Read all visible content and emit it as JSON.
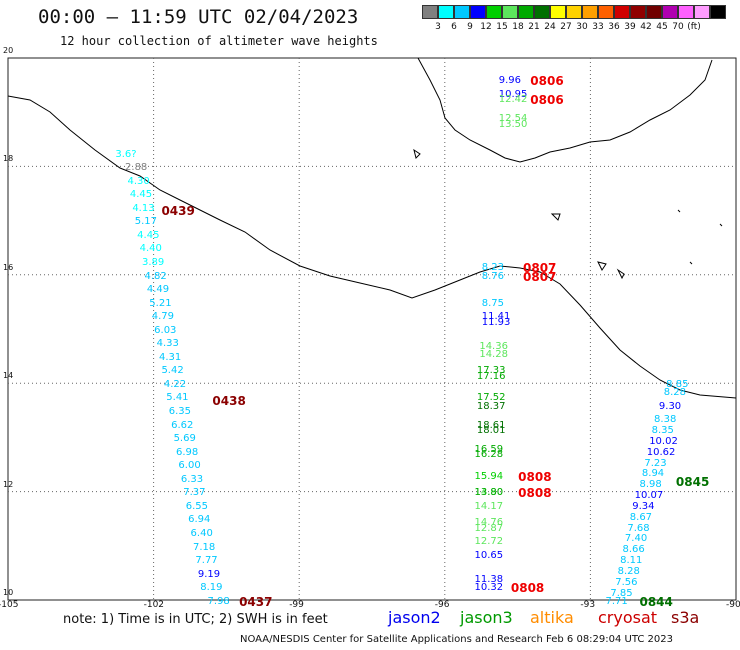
{
  "header": {
    "title": "00:00 – 11:59 UTC 02/04/2023",
    "subtitle": "12 hour collection of altimeter wave heights"
  },
  "scale": {
    "colors": [
      "#808080",
      "#00ffff",
      "#00c8ff",
      "#0000ff",
      "#00d000",
      "#5ce65c",
      "#00aa00",
      "#007000",
      "#ffff00",
      "#ffd200",
      "#ffa000",
      "#ff6000",
      "#d00000",
      "#900000",
      "#700000",
      "#b000b0",
      "#ff60ff",
      "#ff9cff",
      "#000000"
    ],
    "ticks": [
      "3",
      "6",
      "9",
      "12",
      "15",
      "18",
      "21",
      "24",
      "27",
      "30",
      "33",
      "36",
      "39",
      "42",
      "45",
      "70",
      "(ft)"
    ]
  },
  "axes": {
    "y_ticks": [
      "20",
      "18",
      "16",
      "14",
      "12",
      "10"
    ],
    "x_ticks": [
      "-105",
      "-102",
      "-99",
      "-96",
      "-93",
      "-90"
    ]
  },
  "chart_data": {
    "type": "map",
    "lon_range": [
      -105,
      -90
    ],
    "lat_range": [
      10,
      20
    ],
    "observations": [
      {
        "lon": -102.5,
        "lat": 18.2,
        "v": "3.6?",
        "c": "#00ffff"
      },
      {
        "lon": -102.3,
        "lat": 17.95,
        "v": "2.88",
        "c": "#808080"
      },
      {
        "lon": -102.25,
        "lat": 17.7,
        "v": "4.30",
        "c": "#00ffff"
      },
      {
        "lon": -102.2,
        "lat": 17.45,
        "v": "4.45",
        "c": "#00ffff"
      },
      {
        "lon": -102.15,
        "lat": 17.2,
        "v": "4.13",
        "c": "#00ffff"
      },
      {
        "lon": -102.1,
        "lat": 16.95,
        "v": "5.17",
        "c": "#00c8ff"
      },
      {
        "lon": -102.05,
        "lat": 16.7,
        "v": "4.45",
        "c": "#00ffff"
      },
      {
        "lon": -102.0,
        "lat": 16.45,
        "v": "4.40",
        "c": "#00ffff"
      },
      {
        "lon": -101.95,
        "lat": 16.2,
        "v": "3.89",
        "c": "#00ffff"
      },
      {
        "lon": -101.9,
        "lat": 15.95,
        "v": "4.82",
        "c": "#00c8ff"
      },
      {
        "lon": -101.85,
        "lat": 15.7,
        "v": "4.49",
        "c": "#00c8ff"
      },
      {
        "lon": -101.8,
        "lat": 15.45,
        "v": "5.21",
        "c": "#00c8ff"
      },
      {
        "lon": -101.75,
        "lat": 15.2,
        "v": "4.79",
        "c": "#00c8ff"
      },
      {
        "lon": -101.7,
        "lat": 14.95,
        "v": "6.03",
        "c": "#00c8ff"
      },
      {
        "lon": -101.65,
        "lat": 14.7,
        "v": "4.33",
        "c": "#00c8ff"
      },
      {
        "lon": -101.6,
        "lat": 14.45,
        "v": "4.31",
        "c": "#00c8ff"
      },
      {
        "lon": -101.55,
        "lat": 14.2,
        "v": "5.42",
        "c": "#00c8ff"
      },
      {
        "lon": -101.5,
        "lat": 13.95,
        "v": "4.22",
        "c": "#00c8ff"
      },
      {
        "lon": -101.45,
        "lat": 13.7,
        "v": "5.41",
        "c": "#00c8ff"
      },
      {
        "lon": -101.4,
        "lat": 13.45,
        "v": "6.35",
        "c": "#00c8ff"
      },
      {
        "lon": -101.35,
        "lat": 13.2,
        "v": "6.62",
        "c": "#00c8ff"
      },
      {
        "lon": -101.3,
        "lat": 12.95,
        "v": "5.69",
        "c": "#00c8ff"
      },
      {
        "lon": -101.25,
        "lat": 12.7,
        "v": "6.98",
        "c": "#00c8ff"
      },
      {
        "lon": -101.2,
        "lat": 12.45,
        "v": "6.00",
        "c": "#00c8ff"
      },
      {
        "lon": -101.15,
        "lat": 12.2,
        "v": "6.33",
        "c": "#00c8ff"
      },
      {
        "lon": -101.1,
        "lat": 11.95,
        "v": "7.37",
        "c": "#00c8ff"
      },
      {
        "lon": -101.05,
        "lat": 11.7,
        "v": "6.55",
        "c": "#00c8ff"
      },
      {
        "lon": -101.0,
        "lat": 11.45,
        "v": "6.94",
        "c": "#00c8ff"
      },
      {
        "lon": -100.95,
        "lat": 11.2,
        "v": "6.40",
        "c": "#00c8ff"
      },
      {
        "lon": -100.9,
        "lat": 10.95,
        "v": "7.18",
        "c": "#00c8ff"
      },
      {
        "lon": -100.85,
        "lat": 10.7,
        "v": "7.77",
        "c": "#00c8ff"
      },
      {
        "lon": -100.8,
        "lat": 10.45,
        "v": "9.19",
        "c": "#0000ff"
      },
      {
        "lon": -100.75,
        "lat": 10.2,
        "v": "8.19",
        "c": "#00c8ff"
      },
      {
        "lon": -100.6,
        "lat": 9.95,
        "v": "7.98",
        "c": "#00c8ff"
      },
      {
        "lon": -94.6,
        "lat": 19.55,
        "v": "9.96",
        "c": "#0000ff"
      },
      {
        "lon": -94.6,
        "lat": 19.3,
        "v": "10.95",
        "c": "#0000ff"
      },
      {
        "lon": -94.6,
        "lat": 19.2,
        "v": "12.42",
        "c": "#5ce65c"
      },
      {
        "lon": -94.6,
        "lat": 18.85,
        "v": "12.54",
        "c": "#5ce65c"
      },
      {
        "lon": -94.6,
        "lat": 18.75,
        "v": "13.50",
        "c": "#5ce65c"
      },
      {
        "lon": -94.95,
        "lat": 16.1,
        "v": "8.23",
        "c": "#00c8ff"
      },
      {
        "lon": -94.95,
        "lat": 15.95,
        "v": "8.76",
        "c": "#00c8ff"
      },
      {
        "lon": -94.95,
        "lat": 15.45,
        "v": "8.75",
        "c": "#00c8ff"
      },
      {
        "lon": -94.95,
        "lat": 15.2,
        "v": "11.41",
        "c": "#0000ff"
      },
      {
        "lon": -94.95,
        "lat": 15.1,
        "v": "11.93",
        "c": "#0000ff"
      },
      {
        "lon": -95.0,
        "lat": 14.65,
        "v": "14.36",
        "c": "#5ce65c"
      },
      {
        "lon": -95.0,
        "lat": 14.5,
        "v": "14.28",
        "c": "#5ce65c"
      },
      {
        "lon": -95.05,
        "lat": 14.2,
        "v": "17.33",
        "c": "#00aa00"
      },
      {
        "lon": -95.05,
        "lat": 14.1,
        "v": "17.16",
        "c": "#00aa00"
      },
      {
        "lon": -95.05,
        "lat": 13.7,
        "v": "17.52",
        "c": "#00aa00"
      },
      {
        "lon": -95.05,
        "lat": 13.55,
        "v": "18.37",
        "c": "#007000"
      },
      {
        "lon": -95.05,
        "lat": 13.2,
        "v": "18.61",
        "c": "#007000"
      },
      {
        "lon": -95.05,
        "lat": 13.1,
        "v": "18.01",
        "c": "#007000"
      },
      {
        "lon": -95.1,
        "lat": 12.75,
        "v": "16.59",
        "c": "#00aa00"
      },
      {
        "lon": -95.1,
        "lat": 12.65,
        "v": "16.28",
        "c": "#00aa00"
      },
      {
        "lon": -95.1,
        "lat": 12.25,
        "v": "15.94",
        "c": "#00d000"
      },
      {
        "lon": -95.1,
        "lat": 11.95,
        "v": "14.90",
        "c": "#5ce65c"
      },
      {
        "lon": -95.1,
        "lat": 11.95,
        "v": "13.80",
        "c": "#00aa00"
      },
      {
        "lon": -95.1,
        "lat": 11.7,
        "v": "14.17",
        "c": "#5ce65c"
      },
      {
        "lon": -95.1,
        "lat": 11.4,
        "v": "14.76",
        "c": "#5ce65c"
      },
      {
        "lon": -95.1,
        "lat": 11.3,
        "v": "12.87",
        "c": "#5ce65c"
      },
      {
        "lon": -95.1,
        "lat": 11.05,
        "v": "12.72",
        "c": "#5ce65c"
      },
      {
        "lon": -95.1,
        "lat": 10.8,
        "v": "10.65",
        "c": "#0000ff"
      },
      {
        "lon": -95.1,
        "lat": 10.35,
        "v": "11.38",
        "c": "#0000ff"
      },
      {
        "lon": -95.1,
        "lat": 10.2,
        "v": "10.32",
        "c": "#0000ff"
      },
      {
        "lon": -91.15,
        "lat": 13.95,
        "v": "8.85",
        "c": "#00c8ff"
      },
      {
        "lon": -91.2,
        "lat": 13.8,
        "v": "8.28",
        "c": "#00c8ff"
      },
      {
        "lon": -91.3,
        "lat": 13.55,
        "v": "9.30",
        "c": "#0000ff"
      },
      {
        "lon": -91.4,
        "lat": 13.3,
        "v": "8.38",
        "c": "#00c8ff"
      },
      {
        "lon": -91.45,
        "lat": 13.1,
        "v": "8.35",
        "c": "#00c8ff"
      },
      {
        "lon": -91.5,
        "lat": 12.9,
        "v": "10.02",
        "c": "#0000ff"
      },
      {
        "lon": -91.55,
        "lat": 12.7,
        "v": "10.62",
        "c": "#0000ff"
      },
      {
        "lon": -91.6,
        "lat": 12.5,
        "v": "7.23",
        "c": "#00c8ff"
      },
      {
        "lon": -91.65,
        "lat": 12.3,
        "v": "8.94",
        "c": "#00c8ff"
      },
      {
        "lon": -91.7,
        "lat": 12.1,
        "v": "8.98",
        "c": "#00c8ff"
      },
      {
        "lon": -91.8,
        "lat": 11.9,
        "v": "10.07",
        "c": "#0000ff"
      },
      {
        "lon": -91.85,
        "lat": 11.7,
        "v": "9.34",
        "c": "#0000ff"
      },
      {
        "lon": -91.9,
        "lat": 11.5,
        "v": "8.67",
        "c": "#00c8ff"
      },
      {
        "lon": -91.95,
        "lat": 11.3,
        "v": "7.68",
        "c": "#00c8ff"
      },
      {
        "lon": -92.0,
        "lat": 11.1,
        "v": "7.40",
        "c": "#00c8ff"
      },
      {
        "lon": -92.05,
        "lat": 10.9,
        "v": "8.66",
        "c": "#00c8ff"
      },
      {
        "lon": -92.1,
        "lat": 10.7,
        "v": "8.11",
        "c": "#00c8ff"
      },
      {
        "lon": -92.15,
        "lat": 10.5,
        "v": "8.28",
        "c": "#00c8ff"
      },
      {
        "lon": -92.2,
        "lat": 10.3,
        "v": "7.56",
        "c": "#00c8ff"
      },
      {
        "lon": -92.3,
        "lat": 10.1,
        "v": "7.85",
        "c": "#00c8ff"
      },
      {
        "lon": -92.4,
        "lat": 9.95,
        "v": "7.71",
        "c": "#00c8ff"
      }
    ],
    "times": [
      {
        "lon": -101.55,
        "lat": 17.15,
        "t": "0439",
        "c": "#8b0000"
      },
      {
        "lon": -100.5,
        "lat": 13.65,
        "t": "0438",
        "c": "#8b0000"
      },
      {
        "lon": -99.95,
        "lat": 9.95,
        "t": "0437",
        "c": "#8b0000"
      },
      {
        "lon": -93.95,
        "lat": 19.55,
        "t": "0806",
        "c": "#ee0000"
      },
      {
        "lon": -93.95,
        "lat": 19.2,
        "t": "0806",
        "c": "#ee0000"
      },
      {
        "lon": -94.1,
        "lat": 16.1,
        "t": "0807",
        "c": "#ee0000"
      },
      {
        "lon": -94.1,
        "lat": 15.95,
        "t": "0807",
        "c": "#ee0000"
      },
      {
        "lon": -94.2,
        "lat": 12.25,
        "t": "0808",
        "c": "#ee0000"
      },
      {
        "lon": -94.2,
        "lat": 11.95,
        "t": "0808",
        "c": "#ee0000"
      },
      {
        "lon": -94.35,
        "lat": 10.2,
        "t": "0808",
        "c": "#ee0000"
      },
      {
        "lon": -90.95,
        "lat": 12.15,
        "t": "0845",
        "c": "#007000"
      },
      {
        "lon": -91.7,
        "lat": 9.95,
        "t": "0844",
        "c": "#007000"
      }
    ]
  },
  "footer": {
    "note": "note: 1) Time is in UTC; 2) SWH is in feet",
    "legend": [
      {
        "name": "jason2",
        "color": "#0000ee"
      },
      {
        "name": "jason3",
        "color": "#009900"
      },
      {
        "name": "altika",
        "color": "#ff8c00"
      },
      {
        "name": "cryosat",
        "color": "#cc0000"
      },
      {
        "name": "s3a",
        "color": "#8b0000"
      }
    ],
    "credit": "NOAA/NESDIS Center for Satellite Applications and Research    Feb  6 08:29:04 UTC 2023"
  }
}
